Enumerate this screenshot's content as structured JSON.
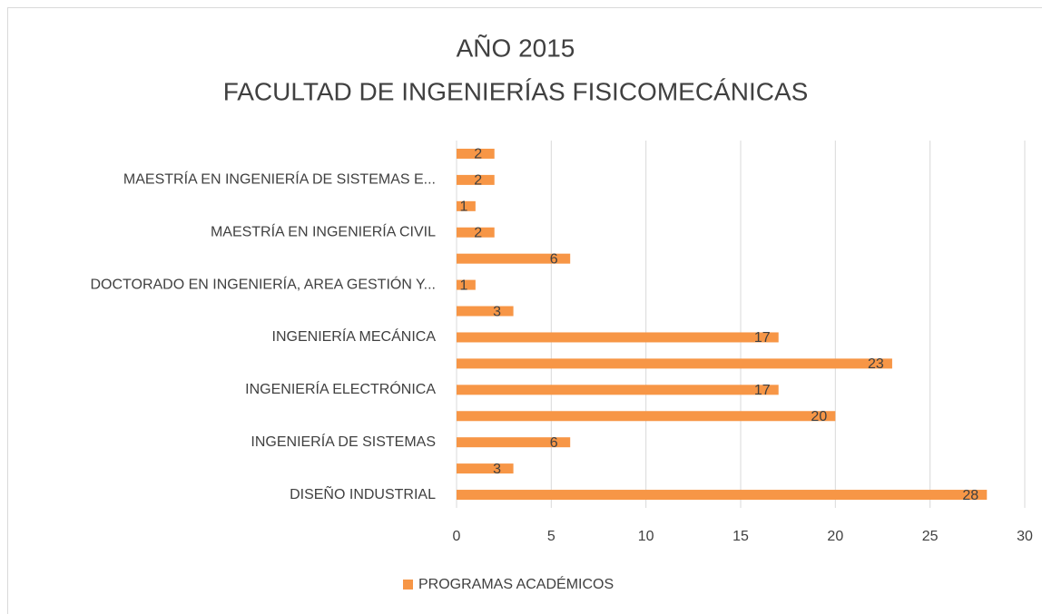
{
  "chart_data": {
    "type": "barh",
    "title": [
      "AÑO 2015",
      "FACULTAD DE INGENIERÍAS FISICOMECÁNICAS"
    ],
    "categories": [
      "DISEÑO INDUSTRIAL",
      null,
      "INGENIERÍA DE SISTEMAS",
      null,
      "INGENIERÍA ELECTRÓNICA",
      null,
      "INGENIERÍA MECÁNICA",
      null,
      "DOCTORADO EN INGENIERÍA, AREA GESTIÓN Y...",
      null,
      "MAESTRÍA EN INGENIERÍA CIVIL",
      null,
      "MAESTRÍA EN INGENIERÍA DE SISTEMAS E...",
      null
    ],
    "series": [
      {
        "name": "PROGRAMAS ACADÉMICOS",
        "color": "#f79646",
        "values": [
          28,
          3,
          6,
          20,
          17,
          23,
          17,
          3,
          1,
          6,
          2,
          1,
          2,
          2
        ]
      }
    ],
    "xlim": [
      0,
      30
    ],
    "xticks": [
      0,
      5,
      10,
      15,
      20,
      25,
      30
    ],
    "grid": true,
    "legend": "bottom"
  }
}
